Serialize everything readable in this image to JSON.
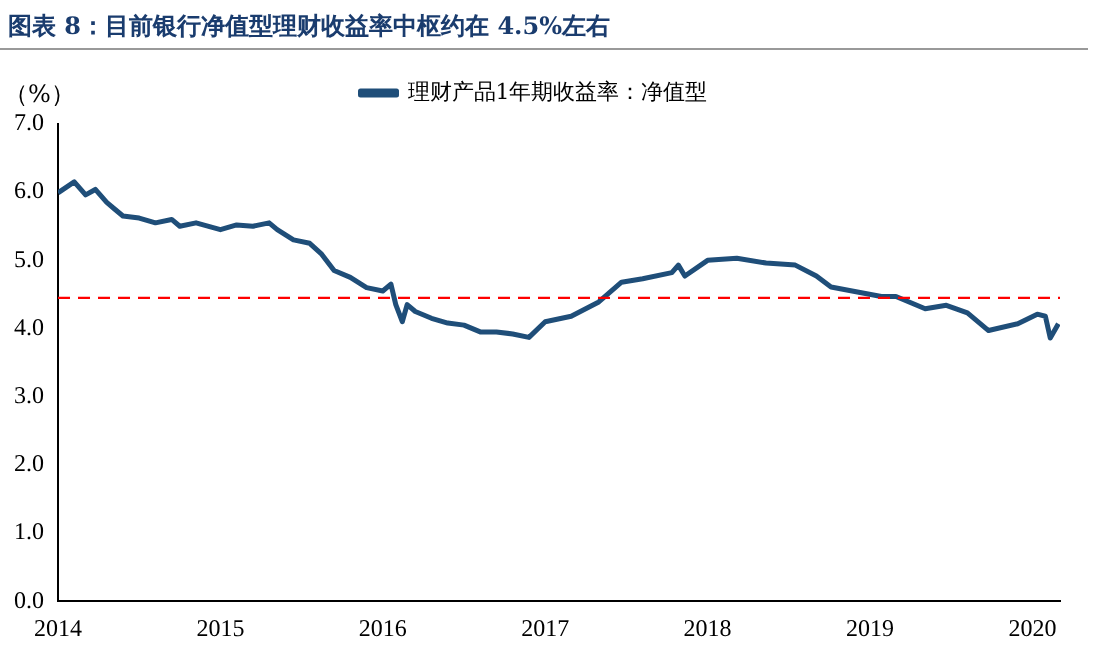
{
  "chart_data": {
    "type": "line",
    "title": "图表 8：目前银行净值型理财收益率中枢约在 4.5%左右",
    "ylabel": "（%）",
    "xlim": [
      2014,
      2020.17
    ],
    "xticks": [
      2014,
      2015,
      2016,
      2017,
      2018,
      2019,
      2020
    ],
    "ylim": [
      0,
      7
    ],
    "yticks": [
      {
        "value": 0,
        "label": "0.0"
      },
      {
        "value": 1,
        "label": "1.0"
      },
      {
        "value": 2,
        "label": "2.0"
      },
      {
        "value": 3,
        "label": "3.0"
      },
      {
        "value": 4,
        "label": "4.0"
      },
      {
        "value": 5,
        "label": "5.0"
      },
      {
        "value": 6,
        "label": "6.0"
      },
      {
        "value": 7,
        "label": "7.0"
      }
    ],
    "grid": false,
    "legend": "top",
    "marker": "none",
    "line_style": "solid",
    "ref_lines": [
      {
        "axis": "y",
        "value": 4.45,
        "color": "#ff0000",
        "line_style": "dashed"
      }
    ],
    "series": [
      {
        "name": "理财产品1年期收益率：净值型",
        "color": "#1f4e79",
        "x": [
          2014.0,
          2014.1,
          2014.17,
          2014.23,
          2014.3,
          2014.35,
          2014.4,
          2014.5,
          2014.6,
          2014.7,
          2014.75,
          2014.85,
          2015.0,
          2015.1,
          2015.2,
          2015.3,
          2015.35,
          2015.45,
          2015.55,
          2015.62,
          2015.7,
          2015.8,
          2015.9,
          2016.0,
          2016.05,
          2016.08,
          2016.12,
          2016.15,
          2016.2,
          2016.3,
          2016.4,
          2016.5,
          2016.6,
          2016.7,
          2016.8,
          2016.9,
          2017.0,
          2017.16,
          2017.33,
          2017.47,
          2017.6,
          2017.78,
          2017.82,
          2017.86,
          2018.0,
          2018.18,
          2018.36,
          2018.54,
          2018.67,
          2018.76,
          2018.89,
          2019.07,
          2019.16,
          2019.34,
          2019.47,
          2019.6,
          2019.73,
          2019.91,
          2020.03,
          2020.08,
          2020.11,
          2020.16
        ],
        "values": [
          5.99,
          6.15,
          5.96,
          6.04,
          5.85,
          5.75,
          5.65,
          5.62,
          5.55,
          5.6,
          5.5,
          5.55,
          5.45,
          5.52,
          5.5,
          5.55,
          5.45,
          5.3,
          5.25,
          5.1,
          4.85,
          4.75,
          4.6,
          4.55,
          4.65,
          4.35,
          4.1,
          4.35,
          4.25,
          4.15,
          4.08,
          4.05,
          3.95,
          3.95,
          3.92,
          3.87,
          4.1,
          4.18,
          4.39,
          4.68,
          4.73,
          4.82,
          4.93,
          4.77,
          5.0,
          5.03,
          4.96,
          4.93,
          4.77,
          4.61,
          4.55,
          4.47,
          4.47,
          4.29,
          4.34,
          4.23,
          3.97,
          4.07,
          4.21,
          4.18,
          3.86,
          4.07
        ]
      }
    ]
  }
}
